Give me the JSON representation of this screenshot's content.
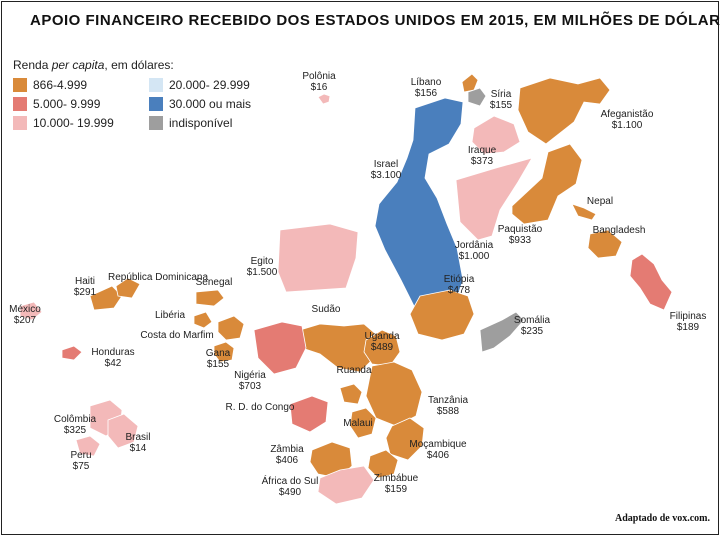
{
  "title": "APOIO FINANCEIRO RECEBIDO DOS ESTADOS UNIDOS EM 2015, EM MILHÕES DE DÓLARES",
  "legend": {
    "title_prefix": "Renda ",
    "title_italic": "per capita",
    "title_suffix": ", em dólares:",
    "items": [
      {
        "label": "866-4.999",
        "color": "#d98a3a"
      },
      {
        "label": "20.000- 29.999",
        "color": "#d4e6f4"
      },
      {
        "label": "5.000- 9.999",
        "color": "#e47b73"
      },
      {
        "label": "30.000 ou mais",
        "color": "#4a7fbd"
      },
      {
        "label": "10.000- 19.999",
        "color": "#f3b9b9"
      },
      {
        "label": "indisponível",
        "color": "#9e9e9e"
      }
    ]
  },
  "countries": [
    {
      "name": "Polônia",
      "value": "$16"
    },
    {
      "name": "Líbano",
      "value": "$156"
    },
    {
      "name": "Síria",
      "value": "$155"
    },
    {
      "name": "Afeganistão",
      "value": "$1.100"
    },
    {
      "name": "Israel",
      "value": "$3.100"
    },
    {
      "name": "Iraque",
      "value": "$373"
    },
    {
      "name": "Nepal",
      "value": ""
    },
    {
      "name": "Paquistão",
      "value": "$933"
    },
    {
      "name": "Bangladesh",
      "value": ""
    },
    {
      "name": "Jordânia",
      "value": "$1.000"
    },
    {
      "name": "Egito",
      "value": "$1.500"
    },
    {
      "name": "Haiti",
      "value": "$291"
    },
    {
      "name": "República Dominicana",
      "value": ""
    },
    {
      "name": "Senegal",
      "value": ""
    },
    {
      "name": "México",
      "value": "$207"
    },
    {
      "name": "Libéria",
      "value": ""
    },
    {
      "name": "Costa do Marfim",
      "value": ""
    },
    {
      "name": "Sudão",
      "value": ""
    },
    {
      "name": "Etiópia",
      "value": "$478"
    },
    {
      "name": "Filipinas",
      "value": "$189"
    },
    {
      "name": "Honduras",
      "value": "$42"
    },
    {
      "name": "Gana",
      "value": "$155"
    },
    {
      "name": "Uganda",
      "value": "$489"
    },
    {
      "name": "Somália",
      "value": "$235"
    },
    {
      "name": "Nigéria",
      "value": "$703"
    },
    {
      "name": "Ruanda",
      "value": ""
    },
    {
      "name": "R. D. do Congo",
      "value": ""
    },
    {
      "name": "Tanzânia",
      "value": "$588"
    },
    {
      "name": "Colômbia",
      "value": "$325"
    },
    {
      "name": "Malaui",
      "value": ""
    },
    {
      "name": "Brasil",
      "value": "$14"
    },
    {
      "name": "Moçambique",
      "value": "$406"
    },
    {
      "name": "Peru",
      "value": "$75"
    },
    {
      "name": "Zâmbia",
      "value": "$406"
    },
    {
      "name": "Zimbábue",
      "value": "$159"
    },
    {
      "name": "África do Sul",
      "value": "$490"
    }
  ],
  "credit": "Adaptado de vox.com."
}
